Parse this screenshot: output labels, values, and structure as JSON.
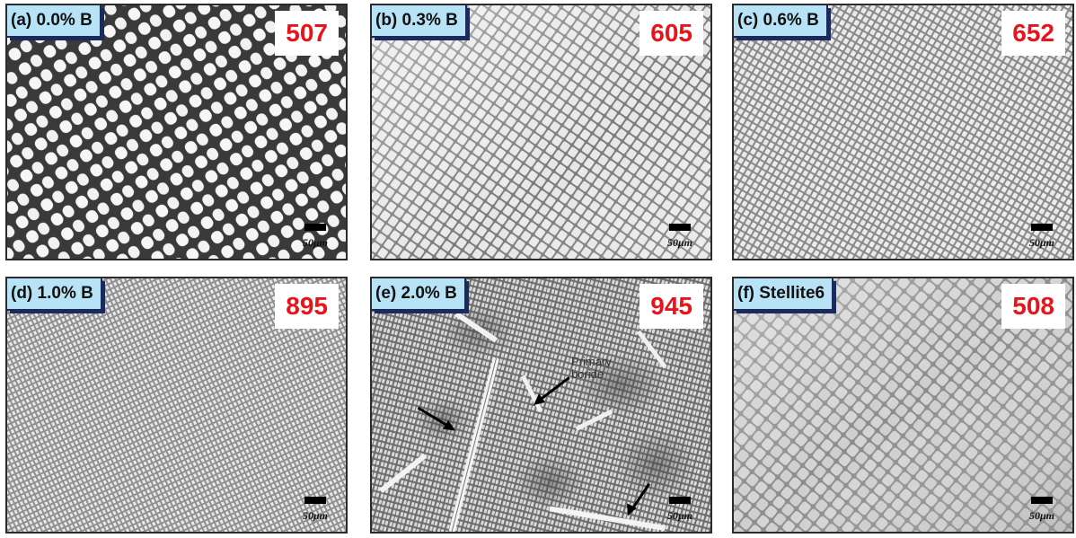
{
  "colors": {
    "label_bg": "#b8e2f5",
    "label_border": "#1a2a5c",
    "hardness_text": "#e8141b"
  },
  "panels": [
    {
      "label": "(a) 0.0% B",
      "hardness": "507",
      "scale_text": "50μm"
    },
    {
      "label": "(b) 0.3% B",
      "hardness": "605",
      "scale_text": "50μm"
    },
    {
      "label": "(c) 0.6% B",
      "hardness": "652",
      "scale_text": "50μm"
    },
    {
      "label": "(d) 1.0% B",
      "hardness": "895",
      "scale_text": "50μm"
    },
    {
      "label": "(e) 2.0% B",
      "hardness": "945",
      "scale_text": "50μm",
      "annotation": [
        "Primary",
        "boride"
      ]
    },
    {
      "label": "(f) Stellite6",
      "hardness": "508",
      "scale_text": "50μm"
    }
  ]
}
